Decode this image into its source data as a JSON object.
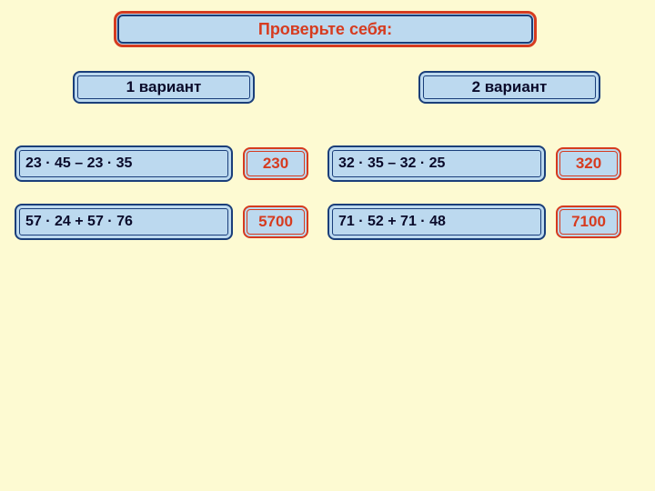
{
  "title": "Проверьте себя:",
  "variants": {
    "v1": "1 вариант",
    "v2": "2 вариант"
  },
  "rows": {
    "r1": {
      "left": {
        "expr": "23 · 45 – 23 · 35",
        "ans": "230"
      },
      "right": {
        "expr": "32 · 35 – 32 · 25",
        "ans": "320"
      }
    },
    "r2": {
      "left": {
        "expr": "57 · 24 + 57 · 76",
        "ans": "5700"
      },
      "right": {
        "expr": "71 · 52 + 71 · 48",
        "ans": "7100"
      }
    }
  },
  "style": {
    "page_bg": "#fdfad2",
    "box_fill": "#bcd9ef",
    "blue_border": "#1a3e7a",
    "red_border": "#d63b1f",
    "text_color": "#0a0a2a",
    "answer_color": "#d63b1f",
    "title_fontsize": 18,
    "variant_fontsize": 17,
    "expr_fontsize": 16,
    "ans_fontsize": 17
  }
}
